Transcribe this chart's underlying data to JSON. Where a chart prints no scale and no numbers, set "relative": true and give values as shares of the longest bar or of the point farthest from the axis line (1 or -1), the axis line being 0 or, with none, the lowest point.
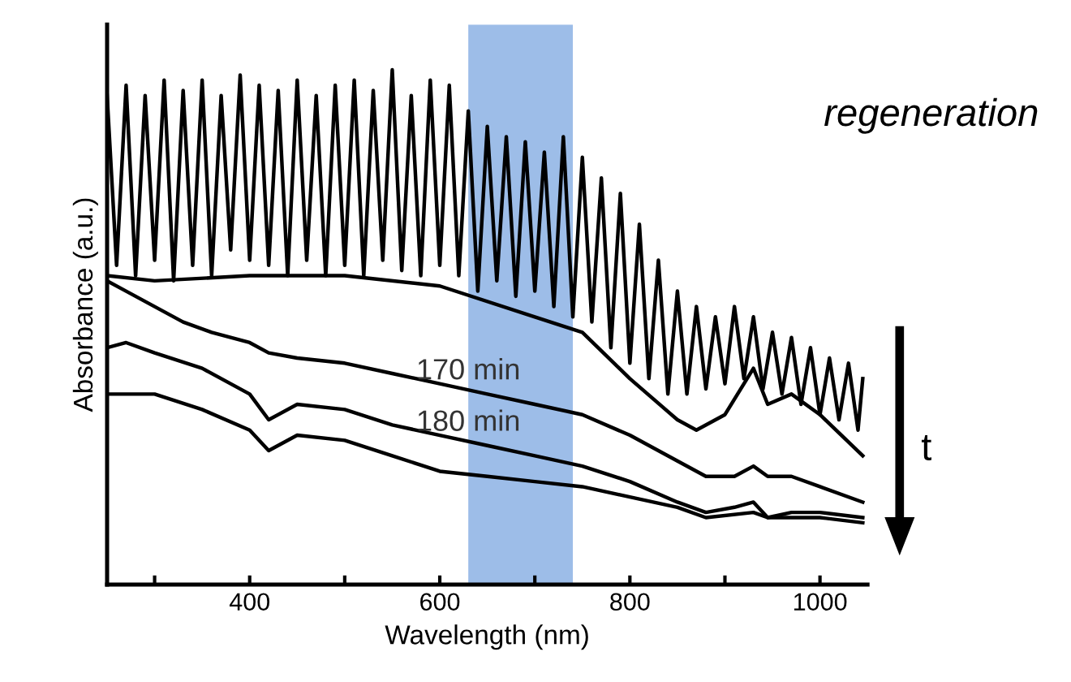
{
  "chart_data": {
    "type": "line",
    "relative": true,
    "xlabel": "Wavelength (nm)",
    "ylabel": "Absorbance (a.u.)",
    "xlim": [
      250,
      1050
    ],
    "xticks": [
      {
        "value": 300,
        "label": null
      },
      400,
      {
        "value": 500,
        "label": null
      },
      600,
      {
        "value": 700,
        "label": null
      },
      800,
      {
        "value": 900,
        "label": null
      },
      1000
    ],
    "tick_labels": "x",
    "grid": false,
    "marker": "none",
    "line_style": "solid",
    "annotations": [
      "regeneration",
      "t"
    ],
    "bands": [
      {
        "axis": "x",
        "from": 630,
        "to": 740,
        "color": "#9dbde8"
      }
    ],
    "series": [
      {
        "color": "#000000",
        "x": [
          250,
          260,
          270,
          280,
          290,
          300,
          310,
          320,
          330,
          340,
          350,
          360,
          370,
          380,
          390,
          400,
          410,
          420,
          430,
          440,
          450,
          460,
          470,
          480,
          490,
          500,
          510,
          520,
          530,
          540,
          550,
          560,
          570,
          580,
          590,
          600,
          610,
          620,
          630,
          640,
          650,
          660,
          670,
          680,
          690,
          700,
          710,
          720,
          730,
          740,
          750,
          760,
          770,
          780,
          790,
          800,
          810,
          820,
          830,
          840,
          850,
          860,
          870,
          880,
          890,
          900,
          910,
          920,
          930,
          940,
          950,
          960,
          970,
          980,
          990,
          1000,
          1010,
          1020,
          1030,
          1040,
          1045
        ],
        "values": [
          0.95,
          0.62,
          0.97,
          0.6,
          0.95,
          0.63,
          0.98,
          0.59,
          0.96,
          0.62,
          0.98,
          0.6,
          0.95,
          0.65,
          0.99,
          0.63,
          0.97,
          0.62,
          0.96,
          0.6,
          0.98,
          0.63,
          0.95,
          0.6,
          0.97,
          0.62,
          0.98,
          0.6,
          0.96,
          0.63,
          1.0,
          0.61,
          0.95,
          0.6,
          0.98,
          0.62,
          0.97,
          0.6,
          0.92,
          0.57,
          0.89,
          0.59,
          0.87,
          0.56,
          0.86,
          0.57,
          0.84,
          0.54,
          0.87,
          0.52,
          0.83,
          0.51,
          0.79,
          0.46,
          0.76,
          0.43,
          0.7,
          0.4,
          0.63,
          0.37,
          0.57,
          0.37,
          0.54,
          0.38,
          0.52,
          0.39,
          0.54,
          0.4,
          0.52,
          0.38,
          0.49,
          0.37,
          0.48,
          0.35,
          0.46,
          0.33,
          0.44,
          0.32,
          0.43,
          0.3,
          0.4
        ]
      },
      {
        "color": "#000000",
        "x": [
          250,
          300,
          400,
          500,
          600,
          700,
          750,
          800,
          850,
          870,
          900,
          930,
          945,
          970,
          1000,
          1045
        ],
        "values": [
          0.6,
          0.59,
          0.6,
          0.6,
          0.58,
          0.52,
          0.49,
          0.4,
          0.32,
          0.3,
          0.33,
          0.42,
          0.35,
          0.37,
          0.33,
          0.25
        ]
      },
      {
        "name": "170 min",
        "color": "#000000",
        "x": [
          250,
          270,
          300,
          330,
          360,
          400,
          420,
          450,
          500,
          550,
          600,
          650,
          700,
          750,
          800,
          850,
          880,
          910,
          930,
          945,
          970,
          1000,
          1045
        ],
        "values": [
          0.59,
          0.57,
          0.54,
          0.51,
          0.49,
          0.47,
          0.45,
          0.44,
          0.43,
          0.41,
          0.39,
          0.37,
          0.35,
          0.33,
          0.29,
          0.24,
          0.21,
          0.21,
          0.23,
          0.21,
          0.21,
          0.19,
          0.16
        ]
      },
      {
        "name": "180 min",
        "color": "#000000",
        "x": [
          250,
          270,
          300,
          350,
          400,
          420,
          450,
          500,
          550,
          600,
          650,
          700,
          750,
          800,
          850,
          880,
          910,
          930,
          945,
          970,
          1000,
          1045
        ],
        "values": [
          0.46,
          0.47,
          0.45,
          0.42,
          0.37,
          0.32,
          0.35,
          0.34,
          0.31,
          0.29,
          0.27,
          0.25,
          0.23,
          0.2,
          0.16,
          0.14,
          0.15,
          0.16,
          0.13,
          0.14,
          0.14,
          0.13
        ]
      },
      {
        "color": "#000000",
        "x": [
          250,
          300,
          350,
          400,
          420,
          450,
          500,
          550,
          600,
          650,
          700,
          750,
          800,
          850,
          880,
          930,
          945,
          1000,
          1045
        ],
        "values": [
          0.37,
          0.37,
          0.34,
          0.3,
          0.26,
          0.29,
          0.28,
          0.25,
          0.22,
          0.21,
          0.2,
          0.19,
          0.17,
          0.15,
          0.13,
          0.14,
          0.13,
          0.13,
          0.12
        ]
      }
    ]
  }
}
